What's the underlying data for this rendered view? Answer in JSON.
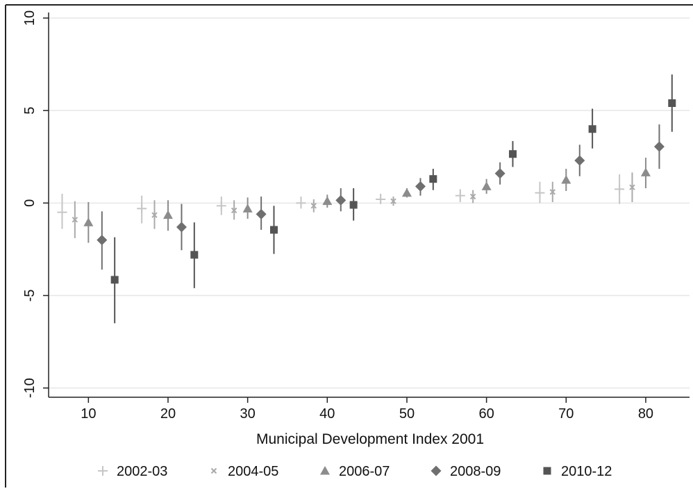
{
  "chart_data": {
    "type": "scatter",
    "title": "",
    "xlabel": "Municipal Development Index 2001",
    "ylabel": "",
    "xlim": [
      5,
      85.5
    ],
    "ylim": [
      -10.5,
      10.3
    ],
    "xticks": [
      10,
      20,
      30,
      40,
      50,
      60,
      70,
      80
    ],
    "xtick_labels": [
      "10",
      "20",
      "30",
      "40",
      "50",
      "60",
      "70",
      "80"
    ],
    "yticks": [
      -10,
      -5,
      0,
      5,
      10
    ],
    "ytick_labels": [
      "-10",
      "-5",
      "0",
      "5",
      "10"
    ],
    "grid": "horizontal",
    "legend_position": "bottom",
    "error_bars": true,
    "series": [
      {
        "name": "2002-03",
        "marker": "plus",
        "color": "#c6c6c6",
        "points": [
          {
            "x": 6.7,
            "y": -0.5,
            "low": -1.4,
            "high": 0.5
          },
          {
            "x": 16.7,
            "y": -0.3,
            "low": -1.1,
            "high": 0.4
          },
          {
            "x": 26.7,
            "y": -0.15,
            "low": -0.65,
            "high": 0.35
          },
          {
            "x": 36.7,
            "y": 0.0,
            "low": -0.3,
            "high": 0.35
          },
          {
            "x": 46.7,
            "y": 0.2,
            "low": 0.0,
            "high": 0.5
          },
          {
            "x": 56.7,
            "y": 0.4,
            "low": 0.05,
            "high": 0.75
          },
          {
            "x": 66.7,
            "y": 0.55,
            "low": 0.0,
            "high": 1.15
          },
          {
            "x": 76.7,
            "y": 0.75,
            "low": -0.05,
            "high": 1.55
          }
        ]
      },
      {
        "name": "2004-05",
        "marker": "x",
        "color": "#aaaaaa",
        "points": [
          {
            "x": 8.3,
            "y": -0.9,
            "low": -1.9,
            "high": 0.1
          },
          {
            "x": 18.3,
            "y": -0.65,
            "low": -1.4,
            "high": 0.15
          },
          {
            "x": 28.3,
            "y": -0.4,
            "low": -0.9,
            "high": 0.15
          },
          {
            "x": 38.3,
            "y": -0.15,
            "low": -0.5,
            "high": 0.2
          },
          {
            "x": 48.3,
            "y": 0.1,
            "low": -0.15,
            "high": 0.35
          },
          {
            "x": 58.3,
            "y": 0.35,
            "low": 0.0,
            "high": 0.7
          },
          {
            "x": 68.3,
            "y": 0.6,
            "low": 0.05,
            "high": 1.15
          },
          {
            "x": 78.3,
            "y": 0.85,
            "low": 0.05,
            "high": 1.65
          }
        ]
      },
      {
        "name": "2006-07",
        "marker": "triangle",
        "color": "#8c8c8c",
        "points": [
          {
            "x": 10.0,
            "y": -1.05,
            "low": -2.15,
            "high": 0.05
          },
          {
            "x": 20.0,
            "y": -0.65,
            "low": -1.5,
            "high": 0.15
          },
          {
            "x": 30.0,
            "y": -0.3,
            "low": -0.85,
            "high": 0.3
          },
          {
            "x": 40.0,
            "y": 0.1,
            "low": -0.25,
            "high": 0.45
          },
          {
            "x": 50.0,
            "y": 0.55,
            "low": 0.3,
            "high": 0.8
          },
          {
            "x": 60.0,
            "y": 0.9,
            "low": 0.5,
            "high": 1.3
          },
          {
            "x": 70.0,
            "y": 1.25,
            "low": 0.65,
            "high": 1.85
          },
          {
            "x": 80.0,
            "y": 1.65,
            "low": 0.8,
            "high": 2.45
          }
        ]
      },
      {
        "name": "2008-09",
        "marker": "diamond",
        "color": "#6f6f6f",
        "points": [
          {
            "x": 11.7,
            "y": -2.0,
            "low": -3.6,
            "high": -0.45
          },
          {
            "x": 21.7,
            "y": -1.3,
            "low": -2.55,
            "high": -0.05
          },
          {
            "x": 31.7,
            "y": -0.6,
            "low": -1.45,
            "high": 0.35
          },
          {
            "x": 41.7,
            "y": 0.15,
            "low": -0.45,
            "high": 0.8
          },
          {
            "x": 51.7,
            "y": 0.9,
            "low": 0.4,
            "high": 1.35
          },
          {
            "x": 61.7,
            "y": 1.6,
            "low": 1.0,
            "high": 2.2
          },
          {
            "x": 71.7,
            "y": 2.3,
            "low": 1.45,
            "high": 3.15
          },
          {
            "x": 81.7,
            "y": 3.05,
            "low": 1.85,
            "high": 4.25
          }
        ]
      },
      {
        "name": "2010-12",
        "marker": "square",
        "color": "#545454",
        "points": [
          {
            "x": 13.3,
            "y": -4.15,
            "low": -6.5,
            "high": -1.85
          },
          {
            "x": 23.3,
            "y": -2.8,
            "low": -4.6,
            "high": -1.05
          },
          {
            "x": 33.3,
            "y": -1.45,
            "low": -2.75,
            "high": -0.15
          },
          {
            "x": 43.3,
            "y": -0.1,
            "low": -0.95,
            "high": 0.8
          },
          {
            "x": 53.3,
            "y": 1.3,
            "low": 0.7,
            "high": 1.85
          },
          {
            "x": 63.3,
            "y": 2.65,
            "low": 1.95,
            "high": 3.35
          },
          {
            "x": 73.3,
            "y": 4.0,
            "low": 2.95,
            "high": 5.1
          },
          {
            "x": 83.3,
            "y": 5.4,
            "low": 3.85,
            "high": 6.95
          }
        ]
      }
    ]
  }
}
